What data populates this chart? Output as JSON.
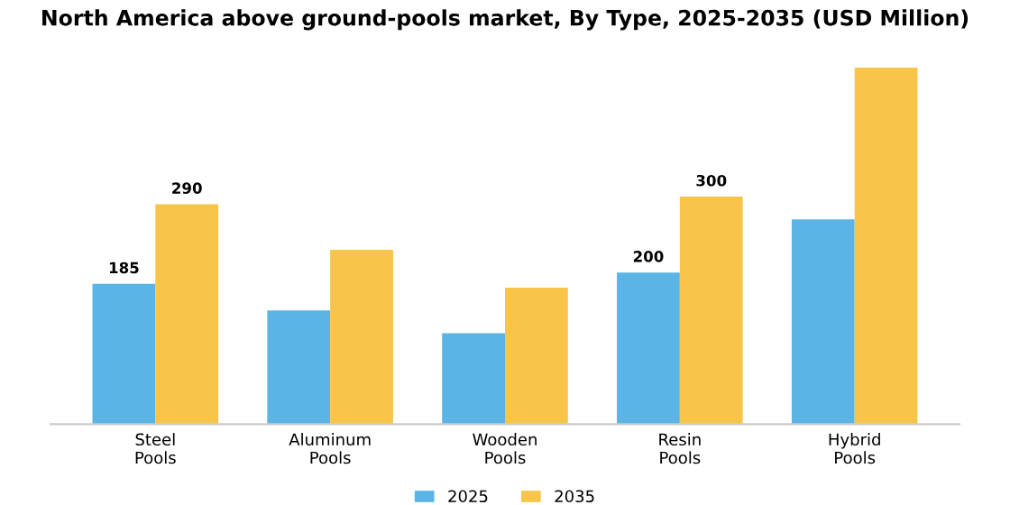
{
  "chart_data": {
    "type": "bar",
    "title": "North America above ground-pools market, By Type, 2025-2035 (USD Million)",
    "categories": [
      "Steel\nPools",
      "Aluminum\nPools",
      "Wooden\nPools",
      "Resin\nPools",
      "Hybrid\nPools"
    ],
    "series": [
      {
        "name": "2025",
        "color": "#5ab4e5",
        "values": [
          185,
          150,
          120,
          200,
          270
        ],
        "value_labels": [
          "185",
          null,
          null,
          "200",
          null
        ]
      },
      {
        "name": "2035",
        "color": "#f8c44a",
        "values": [
          290,
          230,
          180,
          300,
          470
        ],
        "value_labels": [
          "290",
          null,
          null,
          "300",
          null
        ]
      }
    ],
    "legend": "bottom",
    "grid": false
  }
}
